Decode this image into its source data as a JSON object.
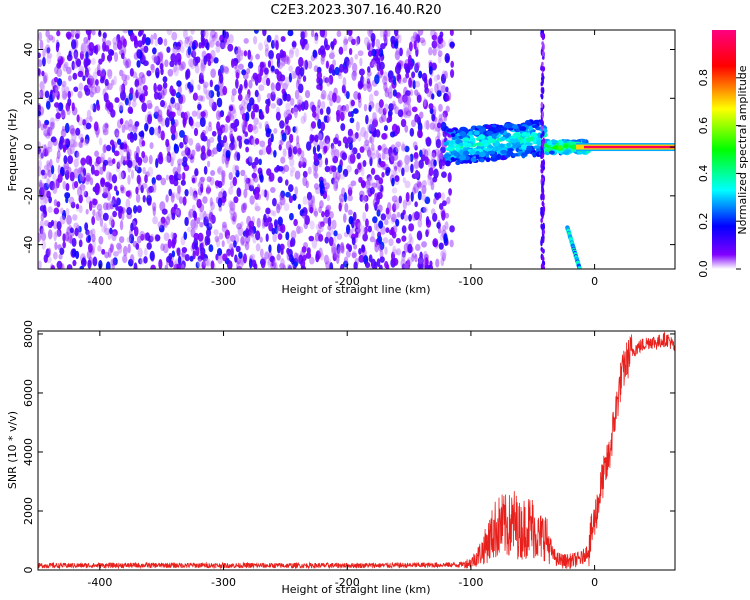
{
  "title": "C2E3.2023.307.16.40.R20",
  "chart_data": [
    {
      "type": "heatmap",
      "xlabel": "Height of straight line (km)",
      "ylabel": "Frequency (Hz)",
      "xlim": [
        -450,
        65
      ],
      "ylim": [
        -50,
        48
      ],
      "x_ticks": [
        -400,
        -300,
        -200,
        -100,
        0
      ],
      "x_tick_labels": [
        "-400",
        "-300",
        "-200",
        "-100",
        "0"
      ],
      "y_ticks": [
        -40,
        -20,
        0,
        20,
        40
      ],
      "y_tick_labels": [
        "-40",
        "-20",
        "0",
        "20",
        "40"
      ],
      "colorbar": {
        "label": "Normalized spectral amplitude",
        "range": [
          0,
          1
        ],
        "ticks": [
          0,
          0.2,
          0.4,
          0.6,
          0.8
        ],
        "tick_labels": [
          "0.0",
          "0.2",
          "0.4",
          "0.6",
          "0.8"
        ],
        "colormap": [
          "#ffffff",
          "#8000ff",
          "#0000ff",
          "#00ffff",
          "#00ff00",
          "#ffff00",
          "#ff0000",
          "#ff0080"
        ]
      },
      "features": [
        {
          "kind": "noise",
          "x_range": [
            -450,
            -115
          ],
          "y_range": [
            -50,
            48
          ],
          "level": 0.15
        },
        {
          "kind": "band",
          "x_range": [
            -120,
            -40
          ],
          "center_freq": 0,
          "width_hz": 14,
          "level": 0.3
        },
        {
          "kind": "band",
          "x_range": [
            -40,
            -5
          ],
          "center_freq": 0,
          "width_hz": 5,
          "level": 0.45
        },
        {
          "kind": "tone",
          "x_range": [
            -15,
            65
          ],
          "freq_hz": 0,
          "level": 0.95
        },
        {
          "kind": "vertical_line",
          "x": -42,
          "y_range": [
            -50,
            48
          ]
        },
        {
          "kind": "chirp",
          "from": [
            -22,
            -33
          ],
          "to": [
            -12,
            -50
          ],
          "level": 0.35
        }
      ],
      "grid": false
    },
    {
      "type": "line",
      "xlabel": "Height of straight line (km)",
      "ylabel": "SNR (10 * v/v)",
      "xlim": [
        -450,
        65
      ],
      "ylim": [
        0,
        8100
      ],
      "x_ticks": [
        -400,
        -300,
        -200,
        -100,
        0
      ],
      "x_tick_labels": [
        "-400",
        "-300",
        "-200",
        "-100",
        "0"
      ],
      "y_ticks": [
        0,
        2000,
        4000,
        6000,
        8000
      ],
      "y_tick_labels": [
        "0",
        "2000",
        "4000",
        "6000",
        "8000"
      ],
      "color": "#e8201c",
      "series": [
        {
          "x": [
            -450,
            -350,
            -250,
            -150,
            -110,
            -100,
            -95,
            -90,
            -85,
            -80,
            -75,
            -70,
            -65,
            -60,
            -55,
            -50,
            -45,
            -40,
            -35,
            -30,
            -25,
            -20,
            -15,
            -10,
            -5,
            0,
            3,
            6,
            9,
            12,
            15,
            18,
            21,
            25,
            30,
            35,
            40,
            45,
            50,
            55,
            60,
            65
          ],
          "y": [
            150,
            160,
            150,
            160,
            180,
            250,
            450,
            700,
            1050,
            1400,
            1500,
            1450,
            1600,
            1300,
            1500,
            1450,
            1100,
            1200,
            600,
            350,
            300,
            300,
            350,
            400,
            700,
            1700,
            2300,
            3000,
            3400,
            3900,
            4800,
            5600,
            6400,
            7000,
            7400,
            7550,
            7650,
            7750,
            7700,
            7800,
            7800,
            7500
          ]
        }
      ],
      "grid": false
    }
  ]
}
